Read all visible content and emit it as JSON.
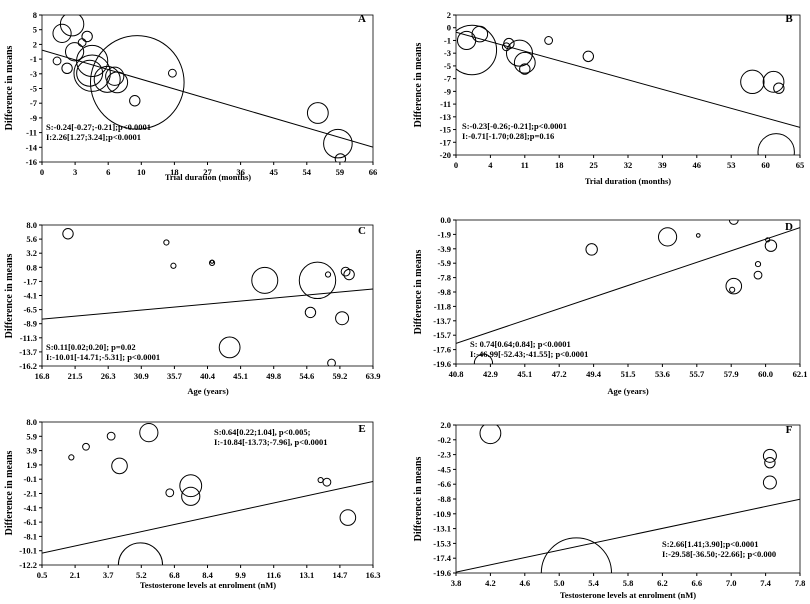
{
  "chart_data": [
    {
      "type": "scatter",
      "panel_label": "A",
      "xlabel": "Trial duration (months)",
      "ylabel": "Difference in means",
      "xticks": [
        "0",
        "3",
        "6",
        "10",
        "18",
        "27",
        "36",
        "45",
        "54",
        "59",
        "66"
      ],
      "yticks": [
        "8",
        "5",
        "2",
        "-1",
        "-3",
        "-5",
        "-7",
        "-9",
        "-11",
        "-14",
        "-16"
      ],
      "xlim": [
        0,
        66
      ],
      "ylim": [
        -16,
        8
      ],
      "stats": [
        "S:-0.24[-0.27;-0.21];p<0.0001",
        "I:2.26[1.27;3.24];p<0.0001"
      ],
      "regression": {
        "slope": -0.24,
        "intercept": 2.26
      },
      "points": [
        {
          "x": 4,
          "y": 5,
          "r": 3.5
        },
        {
          "x": 6,
          "y": 6.5,
          "r": 4.5
        },
        {
          "x": 6.5,
          "y": 2,
          "r": 3.5
        },
        {
          "x": 3,
          "y": 0.5,
          "r": 1.5
        },
        {
          "x": 5,
          "y": -0.7,
          "r": 2
        },
        {
          "x": 8,
          "y": 3.5,
          "r": 1.5
        },
        {
          "x": 9,
          "y": 4.5,
          "r": 2
        },
        {
          "x": 10,
          "y": 0.5,
          "r": 6
        },
        {
          "x": 9.5,
          "y": -1.5,
          "r": 5
        },
        {
          "x": 10,
          "y": -1.5,
          "r": 7
        },
        {
          "x": 13,
          "y": -2.5,
          "r": 5
        },
        {
          "x": 14.5,
          "y": -2,
          "r": 3.5
        },
        {
          "x": 15,
          "y": -3,
          "r": 4
        },
        {
          "x": 19,
          "y": -3,
          "r": 18
        },
        {
          "x": 18.5,
          "y": -6,
          "r": 2
        },
        {
          "x": 26,
          "y": -1.5,
          "r": 1.5
        },
        {
          "x": 55,
          "y": -8,
          "r": 4
        },
        {
          "x": 59,
          "y": -13,
          "r": 5.5
        },
        {
          "x": 59.5,
          "y": -15.5,
          "r": 2
        }
      ]
    },
    {
      "type": "scatter",
      "panel_label": "B",
      "xlabel": "Trial duration (months)",
      "ylabel": "Difference in means",
      "xticks": [
        "0",
        "4",
        "11",
        "18",
        "25",
        "32",
        "39",
        "46",
        "53",
        "60",
        "65"
      ],
      "yticks": [
        "2",
        "0",
        "-1",
        "-3",
        "-5",
        "-7",
        "-9",
        "-11",
        "-13",
        "-15",
        "-17",
        "-20"
      ],
      "xlim": [
        0,
        65
      ],
      "ylim": [
        -20,
        2
      ],
      "stats": [
        "S:-0.23[-0.26;-0.21];p<0.0001",
        "I:-0.71[-1.70;0.28];p=0.16"
      ],
      "regression": {
        "slope": -0.23,
        "intercept": -0.71
      },
      "points": [
        {
          "x": 2,
          "y": -2,
          "r": 3.5
        },
        {
          "x": 4.5,
          "y": -1,
          "r": 3
        },
        {
          "x": 3,
          "y": -3.5,
          "r": 9.5
        },
        {
          "x": 10,
          "y": -2.5,
          "r": 2
        },
        {
          "x": 9.5,
          "y": -3,
          "r": 1.5
        },
        {
          "x": 12,
          "y": -4,
          "r": 5
        },
        {
          "x": 13,
          "y": -5.5,
          "r": 4
        },
        {
          "x": 13,
          "y": -6.5,
          "r": 2
        },
        {
          "x": 17.5,
          "y": -2,
          "r": 1.5
        },
        {
          "x": 25,
          "y": -4.5,
          "r": 2
        },
        {
          "x": 56,
          "y": -8.5,
          "r": 4.5
        },
        {
          "x": 60,
          "y": -8.5,
          "r": 4
        },
        {
          "x": 61,
          "y": -9.5,
          "r": 2
        },
        {
          "x": 60.5,
          "y": -19.5,
          "r": 7
        }
      ]
    },
    {
      "type": "scatter",
      "panel_label": "C",
      "xlabel": "Age (years)",
      "ylabel": "Difference in means",
      "xticks": [
        "16.8",
        "21.5",
        "26.3",
        "30.9",
        "35.7",
        "40.4",
        "45.1",
        "49.8",
        "54.6",
        "59.2",
        "63.9"
      ],
      "yticks": [
        "8.0",
        "5.6",
        "3.2",
        "0.8",
        "-1.7",
        "-4.1",
        "-6.5",
        "-8.9",
        "-11.3",
        "-13.7",
        "-16.2"
      ],
      "xlim": [
        16.8,
        63.9
      ],
      "ylim": [
        -16.2,
        8.0
      ],
      "stats": [
        "S:0.11[0.02;0.20]; p=0.02",
        "I:-10.01[-14.71;-5.31]; p<0.0001"
      ],
      "regression": {
        "slope": 0.11,
        "intercept": -10.01
      },
      "points": [
        {
          "x": 20.5,
          "y": 6.5,
          "r": 2
        },
        {
          "x": 34.5,
          "y": 5,
          "r": 1
        },
        {
          "x": 35.5,
          "y": 1,
          "r": 1
        },
        {
          "x": 41,
          "y": 1.5,
          "r": 1
        },
        {
          "x": 41,
          "y": 1.7,
          "r": 0.6
        },
        {
          "x": 43.5,
          "y": -13,
          "r": 4
        },
        {
          "x": 48.5,
          "y": -1.5,
          "r": 5
        },
        {
          "x": 55,
          "y": -7,
          "r": 2
        },
        {
          "x": 56,
          "y": -1.5,
          "r": 7
        },
        {
          "x": 57.5,
          "y": -0.5,
          "r": 1
        },
        {
          "x": 58,
          "y": -15.7,
          "r": 1.5
        },
        {
          "x": 60,
          "y": 0,
          "r": 1.7
        },
        {
          "x": 60.5,
          "y": -0.5,
          "r": 2
        },
        {
          "x": 59.5,
          "y": -8,
          "r": 2.5
        }
      ]
    },
    {
      "type": "scatter",
      "panel_label": "D",
      "xlabel": "Age (years)",
      "ylabel": "Difference in means",
      "xticks": [
        "40.8",
        "42.9",
        "45.1",
        "47.2",
        "49.4",
        "51.5",
        "53.6",
        "55.7",
        "57.9",
        "60.0",
        "62.1"
      ],
      "yticks": [
        "0.0",
        "-1.9",
        "-3.9",
        "-5.9",
        "-7.8",
        "-9.8",
        "-11.8",
        "-13.7",
        "-15.7",
        "-17.6",
        "-19.6"
      ],
      "xlim": [
        40.8,
        62.1
      ],
      "ylim": [
        -19.6,
        0.0
      ],
      "stats": [
        "S: 0.74[0.64;0.84]; p<0.0001",
        "I:-46.99[-52.43;-41.55]; p<0.0001"
      ],
      "regression": {
        "slope": 0.74,
        "intercept": -46.99
      },
      "points": [
        {
          "x": 42.5,
          "y": -19.5,
          "r": 3.5
        },
        {
          "x": 49.2,
          "y": -4,
          "r": 2.2
        },
        {
          "x": 53.9,
          "y": -2.3,
          "r": 3.5
        },
        {
          "x": 55.8,
          "y": -2.1,
          "r": 0.7
        },
        {
          "x": 58,
          "y": 0,
          "r": 1.7
        },
        {
          "x": 58,
          "y": -9,
          "r": 3
        },
        {
          "x": 57.9,
          "y": -9.5,
          "r": 1
        },
        {
          "x": 59.5,
          "y": -6,
          "r": 1
        },
        {
          "x": 60.3,
          "y": -3.5,
          "r": 2.2
        },
        {
          "x": 60.1,
          "y": -2.7,
          "r": 0.8
        },
        {
          "x": 59.5,
          "y": -7.5,
          "r": 1.5
        }
      ]
    },
    {
      "type": "scatter",
      "panel_label": "E",
      "xlabel": "Testosterone levels at enrolment (nM)",
      "ylabel": "Difference in means",
      "xticks": [
        "0.5",
        "2.1",
        "3.7",
        "5.2",
        "6.8",
        "8.4",
        "9.9",
        "11.6",
        "13.1",
        "14.7",
        "16.3"
      ],
      "yticks": [
        "8.0",
        "5.9",
        "3.9",
        "1.9",
        "-0.1",
        "-2.1",
        "-4.1",
        "-6.1",
        "-8.1",
        "-10.1",
        "-12.2"
      ],
      "xlim": [
        0.5,
        16.3
      ],
      "ylim": [
        -12.2,
        8.0
      ],
      "stats": [
        "S:0.64[0.22;1.04], p<0.005;",
        "I:-10.84[-13.73;-7.96], p<0.0001"
      ],
      "regression": {
        "slope": 0.64,
        "intercept": -10.84
      },
      "points": [
        {
          "x": 1.9,
          "y": 3,
          "r": 1
        },
        {
          "x": 2.6,
          "y": 4.5,
          "r": 1.3
        },
        {
          "x": 3.8,
          "y": 6,
          "r": 1.5
        },
        {
          "x": 4.2,
          "y": 1.8,
          "r": 3
        },
        {
          "x": 5.6,
          "y": 6.5,
          "r": 3.5
        },
        {
          "x": 6.6,
          "y": -2,
          "r": 1.5
        },
        {
          "x": 7.6,
          "y": -1,
          "r": 4.2
        },
        {
          "x": 7.6,
          "y": -2.5,
          "r": 3.5
        },
        {
          "x": 5.2,
          "y": -12.2,
          "r": 8.5
        },
        {
          "x": 13.8,
          "y": -0.2,
          "r": 1
        },
        {
          "x": 14.1,
          "y": -0.5,
          "r": 1.5
        },
        {
          "x": 15.1,
          "y": -5.5,
          "r": 3
        }
      ]
    },
    {
      "type": "scatter",
      "panel_label": "F",
      "xlabel": "Testosterone levels at enrolment (nM)",
      "ylabel": "Difference in means",
      "xticks": [
        "3.8",
        "4.2",
        "4.6",
        "5.0",
        "5.4",
        "5.8",
        "6.2",
        "6.6",
        "7.0",
        "7.4",
        "7.8"
      ],
      "yticks": [
        "2.0",
        "-0.2",
        "-2.3",
        "-4.5",
        "-6.6",
        "-8.8",
        "-10.9",
        "-13.1",
        "-15.3",
        "-17.4",
        "-19.6"
      ],
      "xlim": [
        3.8,
        7.8
      ],
      "ylim": [
        -19.6,
        2.0
      ],
      "stats": [
        "S:2.66[1.41;3.90];p<0.0001",
        "I:-29.58[-36.50;-22.66]; p<0.000"
      ],
      "regression": {
        "slope": 2.66,
        "intercept": -29.58
      },
      "points": [
        {
          "x": 4.2,
          "y": 0.8,
          "r": 4
        },
        {
          "x": 5.2,
          "y": -19.6,
          "r": 13.5
        },
        {
          "x": 7.45,
          "y": -2.5,
          "r": 2.5
        },
        {
          "x": 7.45,
          "y": -3.5,
          "r": 2
        },
        {
          "x": 7.45,
          "y": -6.4,
          "r": 2.5
        }
      ]
    }
  ]
}
